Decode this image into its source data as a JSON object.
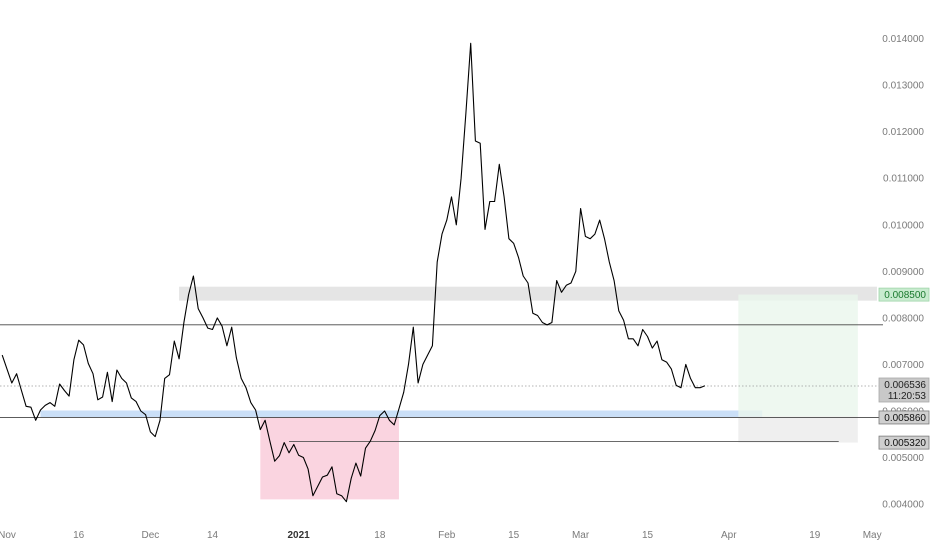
{
  "chart_data": {
    "type": "line",
    "y_axis": {
      "min": 0.0037,
      "max": 0.0144,
      "ticks": [
        "0.004000",
        "0.005000",
        "0.006000",
        "0.007000",
        "0.008000",
        "0.009000",
        "0.010000",
        "0.011000",
        "0.012000",
        "0.013000",
        "0.014000"
      ]
    },
    "x_axis": {
      "ticks": [
        {
          "label": "Nov",
          "day": 0
        },
        {
          "label": "16",
          "day": 15
        },
        {
          "label": "Dec",
          "day": 30
        },
        {
          "label": "14",
          "day": 43
        },
        {
          "label": "2021",
          "day": 61,
          "bold": true
        },
        {
          "label": "18",
          "day": 78
        },
        {
          "label": "Feb",
          "day": 92
        },
        {
          "label": "15",
          "day": 106
        },
        {
          "label": "Mar",
          "day": 120
        },
        {
          "label": "15",
          "day": 134
        },
        {
          "label": "Apr",
          "day": 151
        },
        {
          "label": "19",
          "day": 169
        },
        {
          "label": "May",
          "day": 181
        }
      ]
    },
    "series": [
      {
        "color": "#000000",
        "points": [
          [
            -1,
            0.0072
          ],
          [
            0,
            0.0069
          ],
          [
            1,
            0.0066
          ],
          [
            2,
            0.0068
          ],
          [
            3,
            0.00645
          ],
          [
            4,
            0.0061
          ],
          [
            5,
            0.00608
          ],
          [
            6,
            0.0058
          ],
          [
            7,
            0.00602
          ],
          [
            8,
            0.00612
          ],
          [
            9,
            0.00618
          ],
          [
            10,
            0.0061
          ],
          [
            11,
            0.00658
          ],
          [
            12,
            0.00644
          ],
          [
            13,
            0.00632
          ],
          [
            14,
            0.0071
          ],
          [
            15,
            0.00752
          ],
          [
            16,
            0.00742
          ],
          [
            17,
            0.00702
          ],
          [
            18,
            0.0068
          ],
          [
            19,
            0.00624
          ],
          [
            20,
            0.0063
          ],
          [
            21,
            0.00683
          ],
          [
            22,
            0.0062
          ],
          [
            23,
            0.00688
          ],
          [
            24,
            0.0067
          ],
          [
            25,
            0.0066
          ],
          [
            26,
            0.00628
          ],
          [
            27,
            0.0062
          ],
          [
            28,
            0.006
          ],
          [
            29,
            0.00592
          ],
          [
            30,
            0.00555
          ],
          [
            31,
            0.00545
          ],
          [
            32,
            0.0058
          ],
          [
            33,
            0.0067
          ],
          [
            34,
            0.00678
          ],
          [
            35,
            0.0075
          ],
          [
            36,
            0.00712
          ],
          [
            37,
            0.0079
          ],
          [
            38,
            0.0085
          ],
          [
            39,
            0.0089
          ],
          [
            40,
            0.0082
          ],
          [
            41,
            0.008
          ],
          [
            42,
            0.00778
          ],
          [
            43,
            0.00775
          ],
          [
            44,
            0.008
          ],
          [
            45,
            0.00782
          ],
          [
            46,
            0.0074
          ],
          [
            47,
            0.0078
          ],
          [
            48,
            0.00714
          ],
          [
            49,
            0.0067
          ],
          [
            50,
            0.0065
          ],
          [
            51,
            0.00618
          ],
          [
            52,
            0.00602
          ],
          [
            53,
            0.0056
          ],
          [
            54,
            0.0058
          ],
          [
            55,
            0.00535
          ],
          [
            56,
            0.00492
          ],
          [
            57,
            0.00504
          ],
          [
            58,
            0.00532
          ],
          [
            59,
            0.0051
          ],
          [
            60,
            0.00528
          ],
          [
            61,
            0.00505
          ],
          [
            62,
            0.005
          ],
          [
            63,
            0.00475
          ],
          [
            64,
            0.00418
          ],
          [
            65,
            0.00438
          ],
          [
            66,
            0.00458
          ],
          [
            67,
            0.00462
          ],
          [
            68,
            0.0048
          ],
          [
            69,
            0.00422
          ],
          [
            70,
            0.00418
          ],
          [
            71,
            0.00405
          ],
          [
            72,
            0.00455
          ],
          [
            73,
            0.00488
          ],
          [
            74,
            0.0046
          ],
          [
            75,
            0.0052
          ],
          [
            76,
            0.00535
          ],
          [
            77,
            0.00558
          ],
          [
            78,
            0.0059
          ],
          [
            79,
            0.006
          ],
          [
            80,
            0.0058
          ],
          [
            81,
            0.0057
          ],
          [
            82,
            0.00605
          ],
          [
            83,
            0.0064
          ],
          [
            84,
            0.007
          ],
          [
            85,
            0.0078
          ],
          [
            86,
            0.0066
          ],
          [
            87,
            0.007
          ],
          [
            88,
            0.0072
          ],
          [
            89,
            0.0074
          ],
          [
            90,
            0.0092
          ],
          [
            91,
            0.0098
          ],
          [
            92,
            0.0101
          ],
          [
            93,
            0.0106
          ],
          [
            94,
            0.01
          ],
          [
            95,
            0.011
          ],
          [
            96,
            0.0124
          ],
          [
            97,
            0.0139
          ],
          [
            98,
            0.0118
          ],
          [
            99,
            0.01175
          ],
          [
            100,
            0.0099
          ],
          [
            101,
            0.0105
          ],
          [
            102,
            0.0105
          ],
          [
            103,
            0.0113
          ],
          [
            104,
            0.0106
          ],
          [
            105,
            0.0097
          ],
          [
            106,
            0.0096
          ],
          [
            107,
            0.0093
          ],
          [
            108,
            0.0089
          ],
          [
            109,
            0.00875
          ],
          [
            110,
            0.0081
          ],
          [
            111,
            0.00805
          ],
          [
            112,
            0.0079
          ],
          [
            113,
            0.00785
          ],
          [
            114,
            0.0079
          ],
          [
            115,
            0.0088
          ],
          [
            116,
            0.00855
          ],
          [
            117,
            0.0087
          ],
          [
            118,
            0.00875
          ],
          [
            119,
            0.009
          ],
          [
            120,
            0.01035
          ],
          [
            121,
            0.00975
          ],
          [
            122,
            0.0097
          ],
          [
            123,
            0.0098
          ],
          [
            124,
            0.0101
          ],
          [
            125,
            0.0097
          ],
          [
            126,
            0.0092
          ],
          [
            127,
            0.0088
          ],
          [
            128,
            0.00815
          ],
          [
            129,
            0.00795
          ],
          [
            130,
            0.00755
          ],
          [
            131,
            0.00755
          ],
          [
            132,
            0.0074
          ],
          [
            133,
            0.00775
          ],
          [
            134,
            0.0076
          ],
          [
            135,
            0.00735
          ],
          [
            136,
            0.0075
          ],
          [
            137,
            0.0071
          ],
          [
            138,
            0.00705
          ],
          [
            139,
            0.0069
          ],
          [
            140,
            0.00655
          ],
          [
            141,
            0.0065
          ],
          [
            142,
            0.007
          ],
          [
            143,
            0.0067
          ],
          [
            144,
            0.0065
          ],
          [
            145,
            0.0065
          ],
          [
            146,
            0.00654
          ]
        ]
      }
    ],
    "horizontal_lines": [
      {
        "value": 0.00785,
        "color": "#444444"
      },
      {
        "value": 0.00586,
        "color": "#444444"
      },
      {
        "value": 0.005345,
        "color": "#555555"
      }
    ],
    "dotted_lines": [
      {
        "value": 0.006536,
        "color": "#9a9a9a"
      }
    ],
    "zones": [
      {
        "x0": 36,
        "x1": 182,
        "y0": 0.00837,
        "y1": 0.00867,
        "color": "#e2e2e2",
        "opacity": 0.9
      },
      {
        "x0": 7,
        "x1": 158,
        "y0": 0.00587,
        "y1": 0.00601,
        "color": "#c4dcf6",
        "opacity": 0.9
      },
      {
        "x0": 53,
        "x1": 82,
        "y0": 0.0041,
        "y1": 0.00587,
        "color": "#f8c6d6",
        "opacity": 0.75
      },
      {
        "x0": 153,
        "x1": 178,
        "y0": 0.00588,
        "y1": 0.0085,
        "color": "#eaf6ec",
        "opacity": 0.8
      },
      {
        "x0": 153,
        "x1": 178,
        "y0": 0.00532,
        "y1": 0.00588,
        "color": "#ececec",
        "opacity": 0.85
      }
    ],
    "price_tags": [
      {
        "value": 0.0085,
        "text": "0.008500",
        "bg": "#c8ebcf",
        "fg": "#1a7a2e",
        "border": "#9fd6aa"
      },
      {
        "value": 0.006536,
        "text": "0.006536",
        "sub": "11:20:53",
        "bg": "#c8c8c8",
        "fg": "#222222",
        "border": "#a8a8a8"
      },
      {
        "value": 0.00586,
        "text": "0.005860",
        "bg": "#cfcfcf",
        "fg": "#111111",
        "border": "#7a7a7a"
      },
      {
        "value": 0.00532,
        "text": "0.005320",
        "bg": "#cfcfcf",
        "fg": "#111111",
        "border": "#7a7a7a"
      }
    ]
  }
}
